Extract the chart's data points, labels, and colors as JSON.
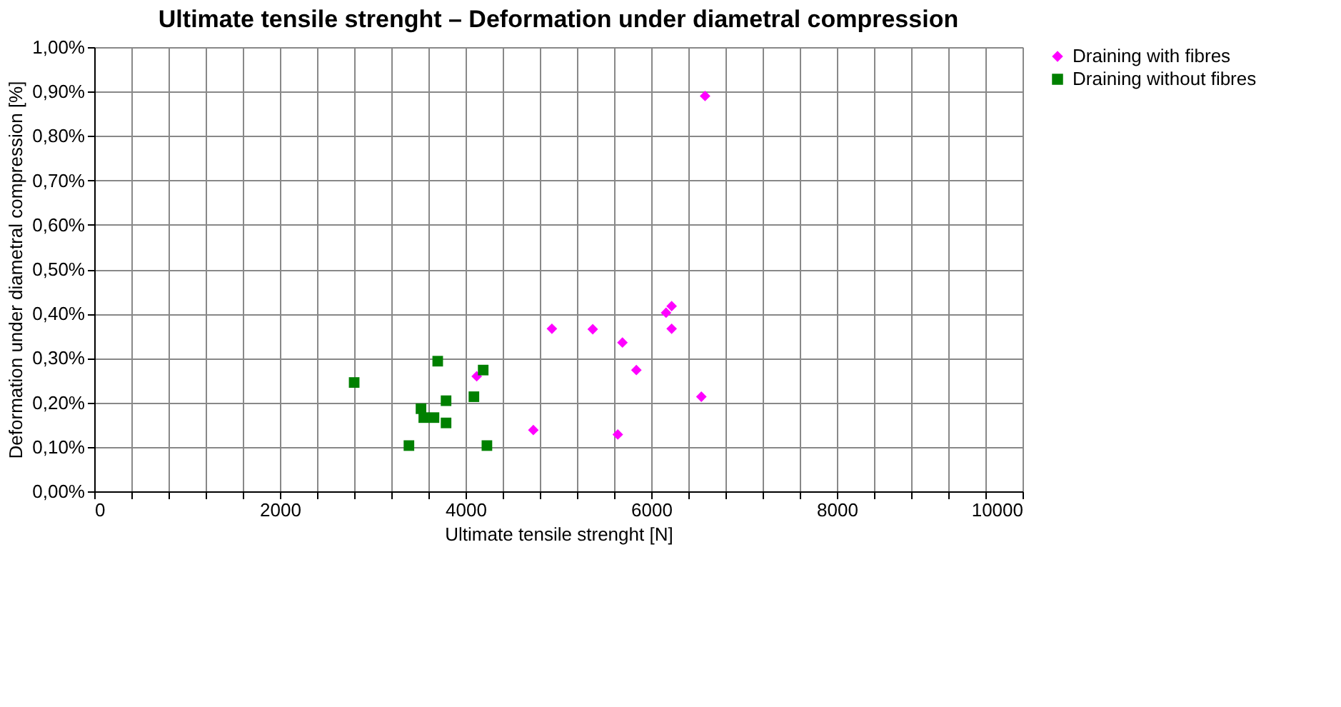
{
  "chart_data": {
    "type": "scatter",
    "title": "Ultimate tensile strenght – Deformation under diametral compression",
    "xlabel": "Ultimate tensile strenght [N]",
    "ylabel": "Deformation under diametral compression [%]",
    "xlim": [
      0,
      10000
    ],
    "xticks": [
      0,
      {
        "value": 400,
        "label": null
      },
      {
        "value": 800,
        "label": null
      },
      {
        "value": 1200,
        "label": null
      },
      {
        "value": 1600,
        "label": null
      },
      2000,
      {
        "value": 2400,
        "label": null
      },
      {
        "value": 2800,
        "label": null
      },
      {
        "value": 3200,
        "label": null
      },
      {
        "value": 3600,
        "label": null
      },
      4000,
      {
        "value": 4400,
        "label": null
      },
      {
        "value": 4800,
        "label": null
      },
      {
        "value": 5200,
        "label": null
      },
      {
        "value": 5600,
        "label": null
      },
      6000,
      {
        "value": 6400,
        "label": null
      },
      {
        "value": 6800,
        "label": null
      },
      {
        "value": 7200,
        "label": null
      },
      {
        "value": 7600,
        "label": null
      },
      8000,
      {
        "value": 8400,
        "label": null
      },
      {
        "value": 8800,
        "label": null
      },
      {
        "value": 9200,
        "label": null
      },
      {
        "value": 9600,
        "label": null
      },
      10000
    ],
    "ylim": [
      0,
      1.0
    ],
    "yticks": [
      {
        "value": 0,
        "label": "0,00%"
      },
      {
        "value": 0.1,
        "label": "0,10%"
      },
      {
        "value": 0.2,
        "label": "0,20%"
      },
      {
        "value": 0.3,
        "label": "0,30%"
      },
      {
        "value": 0.4,
        "label": "0,40%"
      },
      {
        "value": 0.5,
        "label": "0,50%"
      },
      {
        "value": 0.6,
        "label": "0,60%"
      },
      {
        "value": 0.7,
        "label": "0,70%"
      },
      {
        "value": 0.8,
        "label": "0,80%"
      },
      {
        "value": 0.9,
        "label": "0,90%"
      },
      {
        "value": 1.0,
        "label": "1,00%"
      }
    ],
    "grid": true,
    "legend": "right",
    "series": [
      {
        "name": "Draining with fibres",
        "color": "#ff00ff",
        "marker": "diamond",
        "x": [
          6580,
          4930,
          5370,
          5690,
          5840,
          6220,
          6160,
          6220,
          6540,
          4730,
          5640,
          4120
        ],
        "values": [
          0.89,
          0.366,
          0.365,
          0.335,
          0.273,
          0.417,
          0.402,
          0.366,
          0.213,
          0.138,
          0.128,
          0.259
        ]
      },
      {
        "name": "Draining without fibres",
        "color": "#008000",
        "marker": "square",
        "x": [
          2800,
          3700,
          4190,
          4090,
          3790,
          3520,
          3550,
          3660,
          3790,
          3390,
          4230
        ],
        "values": [
          0.245,
          0.293,
          0.273,
          0.213,
          0.204,
          0.186,
          0.166,
          0.166,
          0.154,
          0.103,
          0.103
        ]
      }
    ]
  }
}
